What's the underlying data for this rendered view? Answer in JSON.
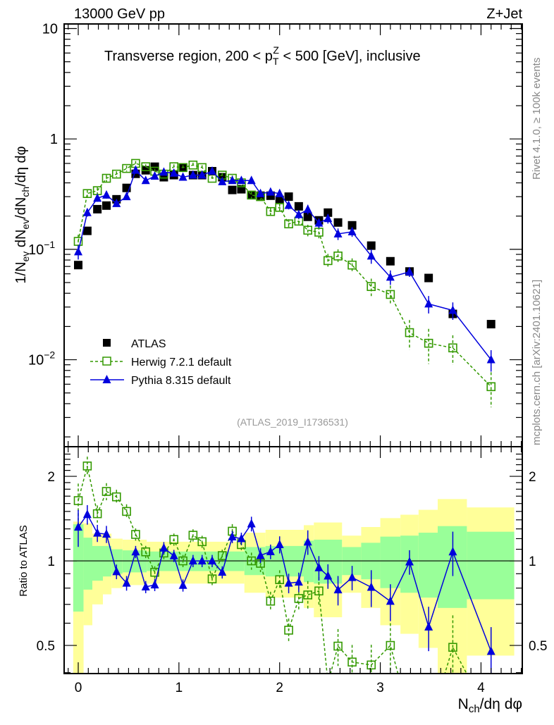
{
  "header": {
    "energy_label": "13000 GeV pp",
    "process_label": "Z+Jet",
    "title_pre": "Transverse region, 200 < p",
    "title_sub": "T",
    "title_sup": "Z",
    "title_post": " < 500 [GeV], inclusive",
    "side_label_top": "Rivet 4.1.0, ≥ 100k events",
    "side_label_bottom": "mcplots.cern.ch [arXiv:2401.10621]",
    "analysis_id": "(ATLAS_2019_I1736531)"
  },
  "chart_data": [
    {
      "type": "scatter",
      "title": "Transverse region, 200 < pT^Z < 500 [GeV], inclusive",
      "xlabel": "N_ch/dη dφ",
      "ylabel": "1/N_ev dN_ev/dN_ch/dη dφ",
      "xlabel_parts": {
        "main": "N",
        "sub": "ch",
        "rest": "/dη dφ"
      },
      "ylabel_parts": [
        "1/N",
        "ev",
        " dN",
        "ev",
        "/dN",
        "ch",
        "/dη dφ"
      ],
      "yscale": "log",
      "xlim": [
        -0.14,
        4.41
      ],
      "ylim": [
        0.00163,
        11
      ],
      "x_ticks": [
        "0",
        "1",
        "2",
        "3",
        "4"
      ],
      "y_ticks": [
        {
          "value": 10,
          "label": "10"
        },
        {
          "value": 1,
          "label": "1"
        },
        {
          "value": 0.1,
          "label": "10",
          "exp": "−1"
        },
        {
          "value": 0.01,
          "label": "10",
          "exp": "−2"
        }
      ],
      "legend_position": "lower-left",
      "x": [
        0,
        0.09,
        0.19,
        0.28,
        0.38,
        0.48,
        0.57,
        0.67,
        0.76,
        0.85,
        0.95,
        1.04,
        1.14,
        1.23,
        1.33,
        1.43,
        1.53,
        1.62,
        1.72,
        1.81,
        1.91,
        2.0,
        2.09,
        2.19,
        2.28,
        2.39,
        2.48,
        2.58,
        2.72,
        2.91,
        3.1,
        3.29,
        3.48,
        3.72,
        4.1
      ],
      "series": [
        {
          "name": "ATLAS",
          "color": "#000000",
          "marker": "filled-square",
          "values": [
            0.072,
            0.147,
            0.231,
            0.249,
            0.284,
            0.36,
            0.483,
            0.52,
            0.56,
            0.45,
            0.47,
            0.55,
            0.47,
            0.47,
            0.51,
            0.45,
            0.345,
            0.35,
            0.31,
            0.306,
            0.306,
            0.28,
            0.3,
            0.245,
            0.197,
            0.183,
            0.215,
            0.175,
            0.165,
            0.108,
            0.078,
            0.063,
            0.055,
            0.026,
            0.021
          ]
        },
        {
          "name": "Herwig 7.2.1 default",
          "color": "#339900",
          "marker": "open-square",
          "line": "dashed",
          "values": [
            0.118,
            0.32,
            0.34,
            0.44,
            0.48,
            0.54,
            0.6,
            0.56,
            0.51,
            0.48,
            0.56,
            0.55,
            0.58,
            0.55,
            0.44,
            0.47,
            0.44,
            0.4,
            0.31,
            0.3,
            0.22,
            0.24,
            0.17,
            0.18,
            0.149,
            0.143,
            0.079,
            0.087,
            0.072,
            0.046,
            0.039,
            0.0176,
            0.0141,
            0.0128,
            0.0057
          ],
          "rel_errors": [
            0.15,
            0.08,
            0.07,
            0.07,
            0.06,
            0.06,
            0.05,
            0.05,
            0.05,
            0.05,
            0.05,
            0.05,
            0.05,
            0.05,
            0.05,
            0.05,
            0.06,
            0.06,
            0.07,
            0.07,
            0.08,
            0.08,
            0.1,
            0.1,
            0.12,
            0.12,
            0.15,
            0.15,
            0.15,
            0.18,
            0.2,
            0.3,
            0.35,
            0.3,
            0.35
          ]
        },
        {
          "name": "Pythia 8.315 default",
          "color": "#0000dd",
          "marker": "filled-triangle",
          "line": "solid",
          "values": [
            0.095,
            0.215,
            0.29,
            0.31,
            0.26,
            0.3,
            0.52,
            0.42,
            0.46,
            0.5,
            0.49,
            0.45,
            0.47,
            0.47,
            0.51,
            0.41,
            0.42,
            0.42,
            0.42,
            0.32,
            0.33,
            0.32,
            0.25,
            0.206,
            0.23,
            0.173,
            0.19,
            0.138,
            0.144,
            0.087,
            0.056,
            0.0625,
            0.032,
            0.028,
            0.01
          ]
        },
        {
          "name": "Pythia 8.315 default errors",
          "rel_errors": [
            0.15,
            0.08,
            0.07,
            0.07,
            0.06,
            0.06,
            0.05,
            0.05,
            0.05,
            0.05,
            0.05,
            0.05,
            0.05,
            0.05,
            0.05,
            0.05,
            0.05,
            0.05,
            0.06,
            0.06,
            0.06,
            0.07,
            0.08,
            0.08,
            0.1,
            0.1,
            0.1,
            0.12,
            0.1,
            0.15,
            0.15,
            0.1,
            0.18,
            0.18,
            0.22
          ]
        }
      ]
    },
    {
      "type": "scatter",
      "ylabel": "Ratio to ATLAS",
      "yscale": "log",
      "xlim": [
        -0.14,
        4.41
      ],
      "ylim": [
        0.397,
        2.55
      ],
      "y_ticks": [
        {
          "value": 2,
          "label": "2"
        },
        {
          "value": 1,
          "label": "1"
        },
        {
          "value": 0.5,
          "label": "0.5"
        }
      ],
      "reference_line": 1,
      "bands": [
        {
          "x": [
            -0.05,
            0.053
          ],
          "inner": [
            0.66,
            1.35
          ],
          "outer": [
            0.39,
            1.38
          ]
        },
        {
          "x": [
            0.053,
            0.14
          ],
          "inner": [
            0.79,
            1.21
          ],
          "outer": [
            0.59,
            1.36
          ]
        },
        {
          "x": [
            0.14,
            0.245
          ],
          "inner": [
            0.85,
            1.13
          ],
          "outer": [
            0.7,
            1.25
          ]
        },
        {
          "x": [
            0.245,
            0.33
          ],
          "inner": [
            0.88,
            1.13
          ],
          "outer": [
            0.76,
            1.25
          ]
        },
        {
          "x": [
            0.33,
            0.44
          ],
          "inner": [
            0.9,
            1.1
          ],
          "outer": [
            0.8,
            1.2
          ]
        },
        {
          "x": [
            0.44,
            0.68
          ],
          "inner": [
            0.91,
            1.09
          ],
          "outer": [
            0.82,
            1.19
          ]
        },
        {
          "x": [
            0.68,
            1.65
          ],
          "inner": [
            0.92,
            1.08
          ],
          "outer": [
            0.83,
            1.17
          ]
        },
        {
          "x": [
            1.65,
            1.86
          ],
          "inner": [
            0.89,
            1.12
          ],
          "outer": [
            0.77,
            1.26
          ]
        },
        {
          "x": [
            1.86,
            2.24
          ],
          "inner": [
            0.88,
            1.13
          ],
          "outer": [
            0.74,
            1.29
          ]
        },
        {
          "x": [
            2.24,
            2.34
          ],
          "inner": [
            0.84,
            1.18
          ],
          "outer": [
            0.68,
            1.34
          ]
        },
        {
          "x": [
            2.34,
            2.62
          ],
          "inner": [
            0.83,
            1.19
          ],
          "outer": [
            0.63,
            1.37
          ]
        },
        {
          "x": [
            2.62,
            2.81
          ],
          "inner": [
            0.89,
            1.12
          ],
          "outer": [
            0.77,
            1.23
          ]
        },
        {
          "x": [
            2.81,
            3.0
          ],
          "inner": [
            0.86,
            1.16
          ],
          "outer": [
            0.68,
            1.32
          ]
        },
        {
          "x": [
            3.0,
            3.2
          ],
          "inner": [
            0.8,
            1.22
          ],
          "outer": [
            0.59,
            1.42
          ]
        },
        {
          "x": [
            3.2,
            3.38
          ],
          "inner": [
            0.77,
            1.23
          ],
          "outer": [
            0.55,
            1.46
          ]
        },
        {
          "x": [
            3.38,
            3.57
          ],
          "inner": [
            0.74,
            1.26
          ],
          "outer": [
            0.49,
            1.52
          ]
        },
        {
          "x": [
            3.57,
            3.86
          ],
          "inner": [
            0.68,
            1.33
          ],
          "outer": [
            0.39,
            1.66
          ]
        },
        {
          "x": [
            3.86,
            4.33
          ],
          "inner": [
            0.73,
            1.27
          ],
          "outer": [
            0.46,
            1.55
          ]
        }
      ],
      "band_colors": {
        "inner": "#99ff99",
        "outer": "#ffff99"
      }
    }
  ]
}
